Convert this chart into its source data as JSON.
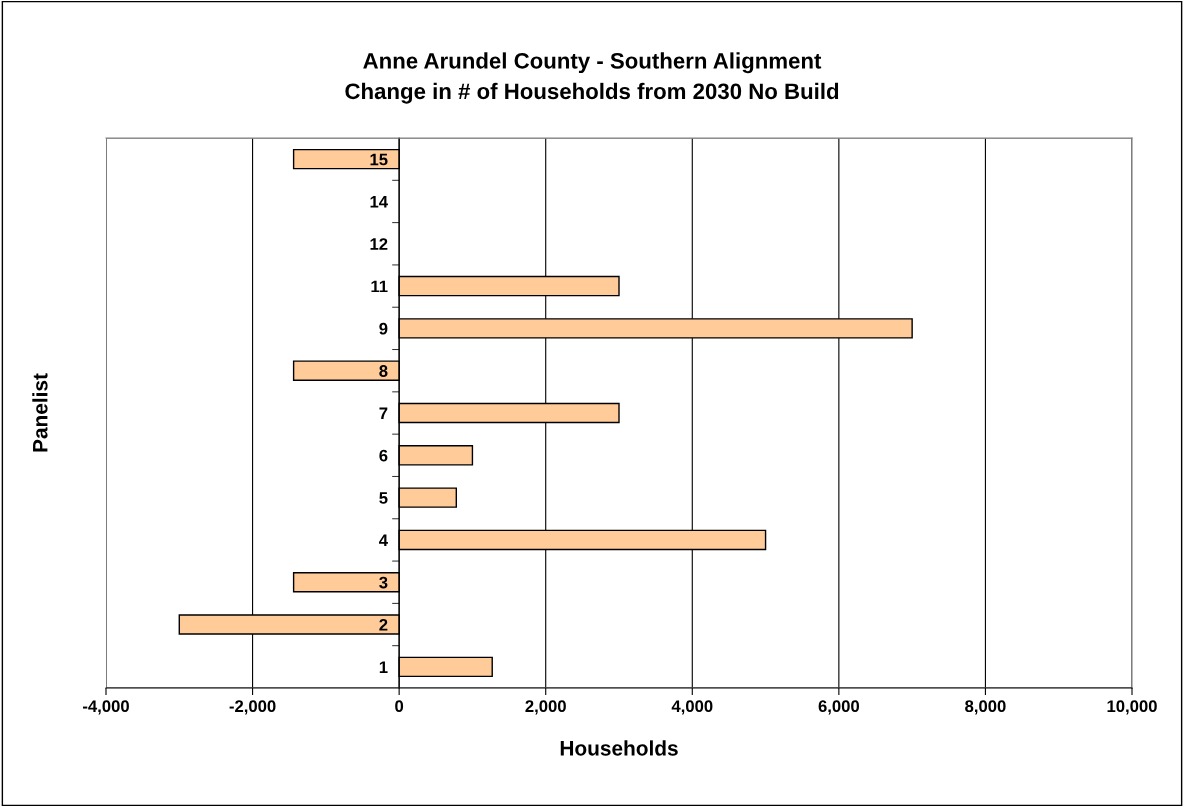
{
  "chart_data": {
    "type": "bar",
    "orientation": "horizontal",
    "title": "Anne Arundel County - Southern Alignment\nChange in # of Households from 2030 No Build",
    "xlabel": "Households",
    "ylabel": "Panelist",
    "categories": [
      "15",
      "14",
      "12",
      "11",
      "9",
      "8",
      "7",
      "6",
      "5",
      "4",
      "3",
      "2",
      "1"
    ],
    "values": [
      -1440,
      null,
      null,
      3000,
      7000,
      -1440,
      3000,
      1000,
      780,
      5000,
      -1440,
      -3000,
      1270
    ],
    "color": "#ffcc99",
    "xlim": [
      -4000,
      10000
    ],
    "xticks": [
      {
        "value": -4000,
        "label": "-4,000"
      },
      {
        "value": -2000,
        "label": "-2,000"
      },
      0,
      {
        "value": 2000,
        "label": "2,000"
      },
      {
        "value": 4000,
        "label": "4,000"
      },
      {
        "value": 6000,
        "label": "6,000"
      },
      {
        "value": 8000,
        "label": "8,000"
      },
      {
        "value": 10000,
        "label": "10,000"
      }
    ],
    "grid": "x",
    "legend": false
  }
}
